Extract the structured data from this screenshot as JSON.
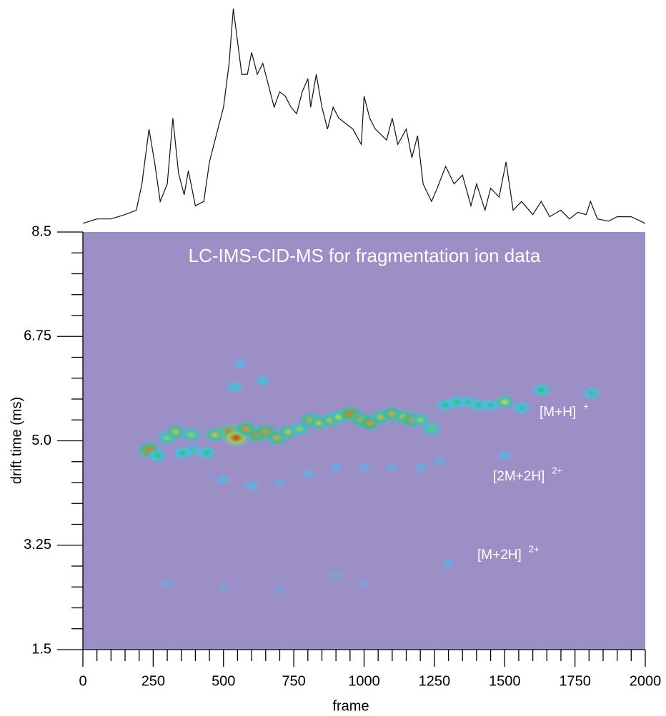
{
  "chart_data": {
    "type": "heatmap",
    "title": "LC-IMS-CID-MS for fragmentation ion data",
    "x_label": "frame",
    "y_label": "drift time (ms)",
    "xlim": [
      0,
      2000
    ],
    "xticks": [
      0,
      250,
      500,
      750,
      1000,
      1250,
      1500,
      1750,
      2000
    ],
    "xminorticks": [
      50,
      100,
      150,
      200,
      300,
      350,
      400,
      450,
      550,
      600,
      650,
      700,
      800,
      850,
      900,
      950,
      1050,
      1100,
      1150,
      1200,
      1300,
      1350,
      1400,
      1450,
      1550,
      1600,
      1650,
      1700,
      1800,
      1850,
      1900,
      1950
    ],
    "ylim": [
      1.5,
      8.5
    ],
    "yticks": [
      1.5,
      3.25,
      {
        "value": 5,
        "label": "5.0"
      },
      6.75,
      8.5
    ],
    "yminorticks": [
      1.85,
      2.2,
      2.55,
      2.9,
      3.6,
      3.95,
      4.3,
      4.65,
      5.35,
      5.7,
      6.05,
      6.4,
      7.1,
      7.45,
      7.8,
      8.15
    ],
    "background": "#9b8fc6",
    "annotations": [
      {
        "text": "[M+H]",
        "sup": "+"
      },
      {
        "text": "[2M+2H]",
        "sup": "2+"
      },
      {
        "text": "[M+2H]",
        "sup": "2+"
      }
    ],
    "tic": {
      "type": "line",
      "color": "#111111",
      "ylim": [
        0,
        100
      ],
      "x": [
        0,
        50,
        100,
        150,
        190,
        210,
        235,
        255,
        275,
        300,
        320,
        340,
        360,
        375,
        400,
        430,
        450,
        470,
        500,
        520,
        535,
        550,
        565,
        585,
        600,
        620,
        640,
        660,
        680,
        700,
        720,
        740,
        760,
        780,
        800,
        810,
        830,
        850,
        870,
        890,
        910,
        930,
        960,
        990,
        1000,
        1020,
        1040,
        1080,
        1100,
        1120,
        1150,
        1170,
        1190,
        1210,
        1240,
        1260,
        1290,
        1320,
        1350,
        1380,
        1400,
        1430,
        1450,
        1480,
        1505,
        1530,
        1560,
        1600,
        1630,
        1660,
        1700,
        1730,
        1760,
        1790,
        1805,
        1830,
        1870,
        1900,
        1950,
        2000
      ],
      "values": [
        2,
        4,
        4,
        6,
        8,
        20,
        45,
        30,
        12,
        20,
        50,
        25,
        15,
        26,
        10,
        12,
        30,
        40,
        55,
        75,
        100,
        85,
        70,
        70,
        80,
        70,
        75,
        65,
        55,
        62,
        60,
        55,
        52,
        62,
        68,
        55,
        70,
        55,
        45,
        55,
        50,
        48,
        45,
        38,
        60,
        50,
        45,
        40,
        50,
        38,
        45,
        32,
        42,
        20,
        12,
        18,
        28,
        20,
        24,
        10,
        20,
        8,
        18,
        14,
        30,
        8,
        12,
        6,
        12,
        5,
        8,
        4,
        7,
        6,
        12,
        4,
        3,
        5,
        5,
        2
      ]
    },
    "blobs": {
      "frame": [
        235,
        265,
        300,
        330,
        355,
        385,
        390,
        440,
        470,
        520,
        545,
        580,
        620,
        650,
        690,
        730,
        770,
        810,
        840,
        880,
        910,
        950,
        990,
        1020,
        1060,
        1100,
        1140,
        1170,
        1200,
        1240,
        1290,
        1330,
        1370,
        1410,
        1450,
        1500,
        1560,
        1630,
        1810,
        540,
        560,
        640,
        500,
        600,
        700,
        800,
        900,
        1000,
        1100,
        1200,
        1270,
        1500,
        300,
        500,
        700,
        900,
        1000,
        1300
      ],
      "drift": [
        4.85,
        4.75,
        5.05,
        5.15,
        4.8,
        5.1,
        4.85,
        4.8,
        5.1,
        5.15,
        5.05,
        5.2,
        5.1,
        5.15,
        5.05,
        5.15,
        5.2,
        5.35,
        5.3,
        5.35,
        5.4,
        5.45,
        5.35,
        5.3,
        5.4,
        5.45,
        5.4,
        5.35,
        5.35,
        5.2,
        5.6,
        5.65,
        5.65,
        5.6,
        5.6,
        5.65,
        5.55,
        5.85,
        5.8,
        5.9,
        6.3,
        6.0,
        4.35,
        4.25,
        4.3,
        4.45,
        4.55,
        4.55,
        4.55,
        4.55,
        4.65,
        4.75,
        2.6,
        2.55,
        2.5,
        2.75,
        2.6,
        2.95
      ],
      "intensity": [
        85,
        50,
        60,
        70,
        50,
        60,
        40,
        50,
        70,
        90,
        100,
        80,
        85,
        80,
        75,
        70,
        60,
        75,
        70,
        70,
        65,
        85,
        75,
        80,
        70,
        75,
        70,
        80,
        60,
        55,
        50,
        50,
        45,
        50,
        45,
        65,
        45,
        50,
        45,
        35,
        25,
        30,
        25,
        25,
        20,
        20,
        20,
        18,
        18,
        20,
        20,
        25,
        15,
        15,
        12,
        15,
        12,
        20
      ]
    }
  }
}
